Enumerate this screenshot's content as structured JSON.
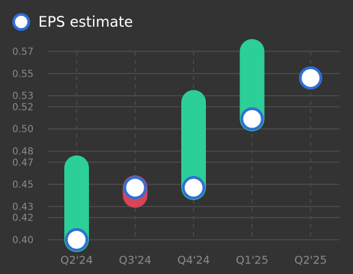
{
  "legend": {
    "label": "EPS estimate"
  },
  "chart_data": {
    "type": "range",
    "categories": [
      "Q2'24",
      "Q3'24",
      "Q4'24",
      "Q1'25",
      "Q2'25"
    ],
    "yticks": [
      "0.40",
      "0.42",
      "0.43",
      "0.45",
      "0.47",
      "0.48",
      "0.50",
      "0.52",
      "0.53",
      "0.55",
      "0.57"
    ],
    "ylim": [
      0.4,
      0.57
    ],
    "estimate": [
      0.4,
      0.447,
      0.447,
      0.509,
      0.546
    ],
    "actual": [
      0.465,
      0.44,
      0.524,
      0.57,
      null
    ],
    "grid": true,
    "legend_position": "top-left",
    "colors": {
      "background": "#333333",
      "grid": "#4d4d4d",
      "beat": "#2bcf97",
      "miss": "#d6455a",
      "marker_fill": "#ffffff",
      "marker_stroke": "#2f6fd6",
      "tick_label": "#8a8a8a"
    }
  }
}
